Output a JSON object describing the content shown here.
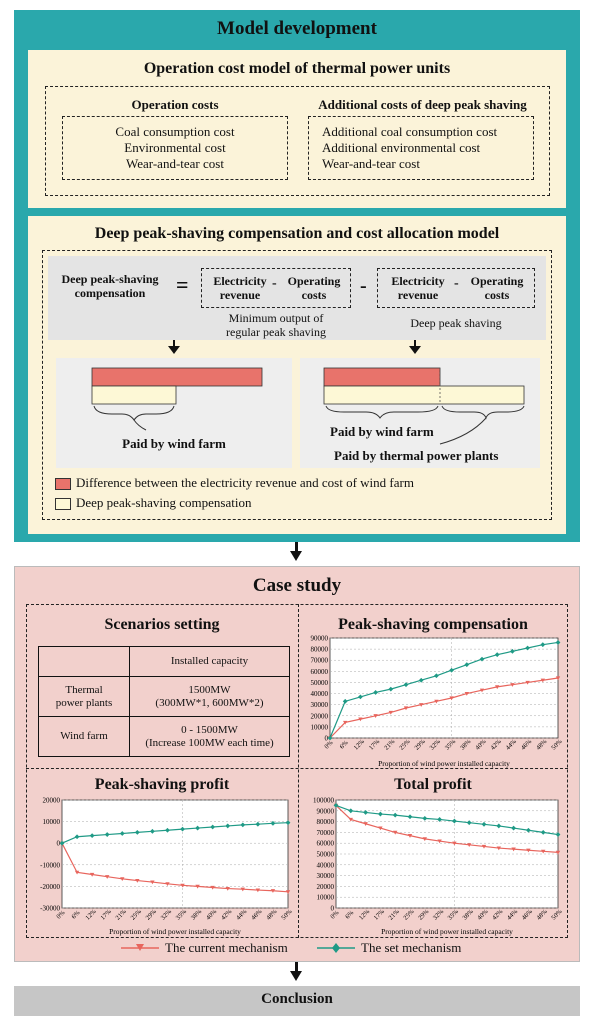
{
  "model": {
    "title": "Model development",
    "operation_cost": {
      "title": "Operation cost model of thermal power units",
      "left_title": "Operation costs",
      "left_items": [
        "Coal consumption cost",
        "Environmental cost",
        "Wear-and-tear cost"
      ],
      "right_title": "Additional costs of deep peak shaving",
      "right_items": [
        "Additional coal consumption cost",
        "Additional environmental cost",
        "Wear-and-tear cost"
      ]
    },
    "compensation": {
      "title": "Deep peak-shaving compensation and cost allocation model",
      "label_line1": "Deep peak-shaving",
      "label_line2": "compensation",
      "equals": "=",
      "minus": "-",
      "inner_minus": "-",
      "box1_a_line1": "Electricity",
      "box1_a_line2": "revenue",
      "box1_b_line1": "Operating",
      "box1_b_line2": "costs",
      "box1_caption_line1": "Minimum output of",
      "box1_caption_line2": "regular peak shaving",
      "box2_caption": "Deep peak shaving",
      "left_paid": "Paid by wind farm",
      "right_paid_wind": "Paid by wind farm",
      "right_paid_thermal": "Paid by thermal power plants",
      "legend_red": "Difference between the electricity revenue and cost of wind farm",
      "legend_cream": "Deep peak-shaving compensation",
      "red_color": "#e8736b",
      "cream_color": "#fdf8d6"
    }
  },
  "case": {
    "title": "Case study",
    "scenarios": {
      "title": "Scenarios setting",
      "header": "Installed capacity",
      "row1_label_line1": "Thermal",
      "row1_label_line2": "power plants",
      "row1_value_line1": "1500MW",
      "row1_value_line2": "(300MW*1, 600MW*2)",
      "row2_label": "Wind farm",
      "row2_value_line1": "0 - 1500MW",
      "row2_value_line2": "(Increase 100MW each time)"
    },
    "legend_current": "The current mechanism",
    "legend_set": "The set mechanism",
    "color_current": "#e8655d",
    "color_set": "#1f9a86"
  },
  "conclusion": "Conclusion",
  "chart_data": [
    {
      "type": "line",
      "title": "Peak-shaving compensation",
      "xlabel": "Proportion of wind power installed capacity",
      "ylabel": "",
      "ylim": [
        0,
        90000
      ],
      "yticks": [
        "0",
        "10000",
        "20000",
        "30000",
        "40000",
        "50000",
        "60000",
        "70000",
        "80000",
        "90000"
      ],
      "x": [
        "0%",
        "6%",
        "12%",
        "17%",
        "21%",
        "25%",
        "29%",
        "32%",
        "35%",
        "38%",
        "40%",
        "42%",
        "44%",
        "46%",
        "48%",
        "50%"
      ],
      "series": [
        {
          "name": "The current mechanism",
          "values": [
            0,
            14000,
            17000,
            20000,
            23000,
            27000,
            30000,
            33000,
            36000,
            40000,
            43000,
            46000,
            48000,
            50000,
            52000,
            54000
          ]
        },
        {
          "name": "The set mechanism",
          "values": [
            0,
            33000,
            37000,
            41000,
            44000,
            48000,
            52000,
            56000,
            61000,
            66000,
            71000,
            75000,
            78000,
            81000,
            84000,
            86000
          ]
        }
      ],
      "grid": true
    },
    {
      "type": "line",
      "title": "Peak-shaving profit",
      "xlabel": "Proportion of wind power installed capacity",
      "ylabel": "",
      "ylim": [
        -30000,
        20000
      ],
      "yticks": [
        "-30000",
        "-20000",
        "-10000",
        "0",
        "10000",
        "20000"
      ],
      "x": [
        "0%",
        "6%",
        "12%",
        "17%",
        "21%",
        "25%",
        "29%",
        "32%",
        "35%",
        "38%",
        "40%",
        "42%",
        "44%",
        "46%",
        "48%",
        "50%"
      ],
      "series": [
        {
          "name": "The current mechanism",
          "values": [
            0,
            -13500,
            -14500,
            -15500,
            -16500,
            -17300,
            -18000,
            -18800,
            -19500,
            -20000,
            -20500,
            -21000,
            -21300,
            -21700,
            -22000,
            -22500
          ]
        },
        {
          "name": "The set mechanism",
          "values": [
            0,
            3000,
            3500,
            4000,
            4500,
            5000,
            5500,
            6000,
            6500,
            7000,
            7500,
            8000,
            8500,
            8800,
            9200,
            9500
          ]
        }
      ],
      "grid": true
    },
    {
      "type": "line",
      "title": "Total profit",
      "xlabel": "Proportion of wind power installed capacity",
      "ylabel": "",
      "ylim": [
        0,
        100000
      ],
      "yticks": [
        "0",
        "10000",
        "20000",
        "30000",
        "40000",
        "50000",
        "60000",
        "70000",
        "80000",
        "90000",
        "100000"
      ],
      "x": [
        "0%",
        "6%",
        "12%",
        "17%",
        "21%",
        "25%",
        "29%",
        "32%",
        "35%",
        "38%",
        "40%",
        "42%",
        "44%",
        "46%",
        "48%",
        "50%"
      ],
      "series": [
        {
          "name": "The current mechanism",
          "values": [
            95000,
            82000,
            78000,
            74000,
            70000,
            67000,
            64000,
            62000,
            60000,
            58500,
            57000,
            55500,
            54500,
            53500,
            52500,
            51500
          ]
        },
        {
          "name": "The set mechanism",
          "values": [
            95000,
            90000,
            88500,
            87000,
            86000,
            84500,
            83000,
            82000,
            80500,
            79000,
            77500,
            76000,
            74000,
            72000,
            70000,
            68000
          ]
        }
      ],
      "grid": true
    }
  ]
}
